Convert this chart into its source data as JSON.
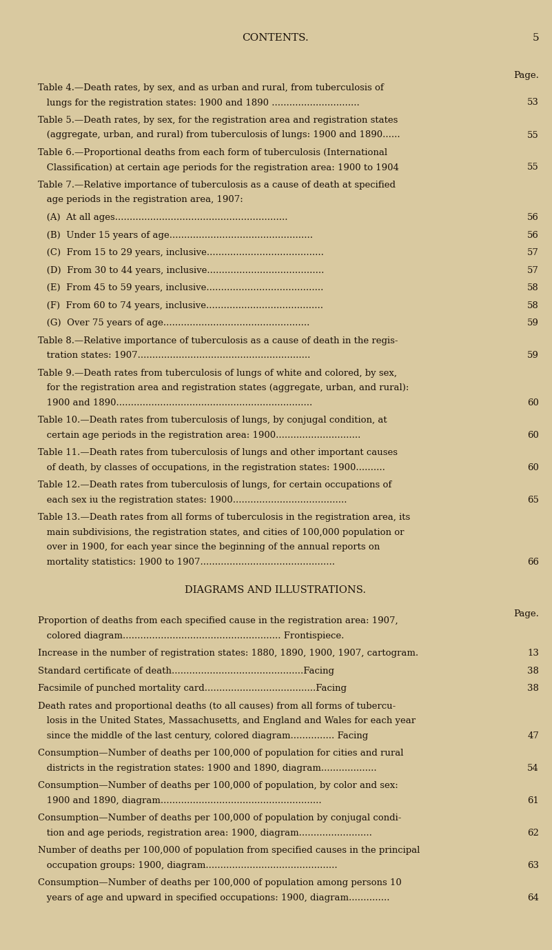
{
  "bg_color": "#d9c9a0",
  "text_color": "#1a1008",
  "title": "CONTENTS.",
  "page_num": "5",
  "page_label": "Page.",
  "figsize": [
    8.01,
    13.78
  ],
  "dpi": 100,
  "entries": [
    {
      "text": "Table 4.—Death rates, by sex, and as urban and rural, from tuberculosis of\n   lungs for the registration states: 1900 and 1890 ..............................",
      "page": "53",
      "indent": 0,
      "bold": false
    },
    {
      "text": "Table 5.—Death rates, by sex, for the registration area and registration states\n   (aggregate, urban, and rural) from tuberculosis of lungs: 1900 and 1890......",
      "page": "55",
      "indent": 0,
      "bold": false
    },
    {
      "text": "Table 6.—Proportional deaths from each form of tuberculosis (International\n   Classification) at certain age periods for the registration area: 1900 to 1904",
      "page": "55",
      "indent": 0,
      "bold": false
    },
    {
      "text": "Table 7.—Relative importance of tuberculosis as a cause of death at specified\n   age periods in the registration area, 1907:",
      "page": "",
      "indent": 0,
      "bold": false
    },
    {
      "text": "   (A)  At all ages...........................................................",
      "page": "56",
      "indent": 1,
      "bold": false
    },
    {
      "text": "   (B)  Under 15 years of age.................................................",
      "page": "56",
      "indent": 1,
      "bold": false
    },
    {
      "text": "   (C)  From 15 to 29 years, inclusive........................................",
      "page": "57",
      "indent": 1,
      "bold": false
    },
    {
      "text": "   (D)  From 30 to 44 years, inclusive........................................",
      "page": "57",
      "indent": 1,
      "bold": false
    },
    {
      "text": "   (E)  From 45 to 59 years, inclusive........................................",
      "page": "58",
      "indent": 1,
      "bold": false
    },
    {
      "text": "   (F)  From 60 to 74 years, inclusive........................................",
      "page": "58",
      "indent": 1,
      "bold": false
    },
    {
      "text": "   (G)  Over 75 years of age..................................................",
      "page": "59",
      "indent": 1,
      "bold": false
    },
    {
      "text": "Table 8.—Relative importance of tuberculosis as a cause of death in the regis-\n   tration states: 1907...........................................................",
      "page": "59",
      "indent": 0,
      "bold": false
    },
    {
      "text": "Table 9.—Death rates from tuberculosis of lungs of white and colored, by sex,\n   for the registration area and registration states (aggregate, urban, and rural):\n   1900 and 1890...................................................................",
      "page": "60",
      "indent": 0,
      "bold": false
    },
    {
      "text": "Table 10.—Death rates from tuberculosis of lungs, by conjugal condition, at\n   certain age periods in the registration area: 1900.............................",
      "page": "60",
      "indent": 0,
      "bold": false
    },
    {
      "text": "Table 11.—Death rates from tuberculosis of lungs and other important causes\n   of death, by classes of occupations, in the registration states: 1900..........",
      "page": "60",
      "indent": 0,
      "bold": false
    },
    {
      "text": "Table 12.—Death rates from tuberculosis of lungs, for certain occupations of\n   each sex iu the registration states: 1900.......................................",
      "page": "65",
      "indent": 0,
      "bold": false
    },
    {
      "text": "Table 13.—Death rates from all forms of tuberculosis in the registration area, its\n   main subdivisions, the registration states, and cities of 100,000 population or\n   over in 1900, for each year since the beginning of the annual reports on\n   mortality statistics: 1900 to 1907..............................................",
      "page": "66",
      "indent": 0,
      "bold": false
    }
  ],
  "section2_title": "DIAGRAMS AND ILLUSTRATIONS.",
  "section2_page_label": "Page.",
  "entries2": [
    {
      "text": "Proportion of deaths from each specified cause in the registration area: 1907,\n   colored diagram...................................................... Frontispiece.",
      "page": "",
      "indent": 0
    },
    {
      "text": "Increase in the number of registration states: 1880, 1890, 1900, 1907, cartogram.",
      "page": "13",
      "indent": 0
    },
    {
      "text": "Standard certificate of death.............................................Facing",
      "page": "38",
      "indent": 0
    },
    {
      "text": "Facsimile of punched mortality card......................................Facing",
      "page": "38",
      "indent": 0
    },
    {
      "text": "Death rates and proportional deaths (to all causes) from all forms of tubercu-\n   losis in the United States, Massachusetts, and England and Wales for each year\n   since the middle of the last century, colored diagram............... Facing",
      "page": "47",
      "indent": 0
    },
    {
      "text": "Consumption—Number of deaths per 100,000 of population for cities and rural\n   districts in the registration states: 1900 and 1890, diagram...................",
      "page": "54",
      "indent": 0
    },
    {
      "text": "Consumption—Number of deaths per 100,000 of population, by color and sex:\n   1900 and 1890, diagram.......................................................",
      "page": "61",
      "indent": 0
    },
    {
      "text": "Consumption—Number of deaths per 100,000 of population by conjugal condi-\n   tion and age periods, registration area: 1900, diagram.........................",
      "page": "62",
      "indent": 0
    },
    {
      "text": "Number of deaths per 100,000 of population from specified causes in the principal\n   occupation groups: 1900, diagram.............................................",
      "page": "63",
      "indent": 0
    },
    {
      "text": "Consumption—Number of deaths per 100,000 of population among persons 10\n   years of age and upward in specified occupations: 1900, diagram..............",
      "page": "64",
      "indent": 0
    }
  ]
}
